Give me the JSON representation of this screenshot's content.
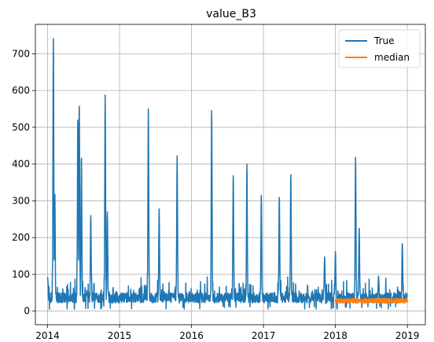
{
  "chart_data": {
    "type": "line",
    "title": "value_B3",
    "xlabel": "",
    "ylabel": "",
    "x_ticks": [
      "2014",
      "2015",
      "2016",
      "2017",
      "2018",
      "2019"
    ],
    "x_tick_values": [
      2014,
      2015,
      2016,
      2017,
      2018,
      2019
    ],
    "y_ticks": [
      "0",
      "100",
      "200",
      "300",
      "400",
      "500",
      "600",
      "700"
    ],
    "y_tick_values": [
      0,
      100,
      200,
      300,
      400,
      500,
      600,
      700
    ],
    "xlim": [
      2013.83,
      2019.25
    ],
    "ylim": [
      -37,
      780
    ],
    "grid": true,
    "legend": "top-right",
    "series": [
      {
        "name": "True",
        "color": "#1f77b4",
        "peaks": [
          {
            "x": 2014.0,
            "y": 93
          },
          {
            "x": 2014.08,
            "y": 745
          },
          {
            "x": 2014.1,
            "y": 325
          },
          {
            "x": 2014.42,
            "y": 525
          },
          {
            "x": 2014.44,
            "y": 568
          },
          {
            "x": 2014.47,
            "y": 425
          },
          {
            "x": 2014.6,
            "y": 260
          },
          {
            "x": 2014.8,
            "y": 588
          },
          {
            "x": 2014.83,
            "y": 270
          },
          {
            "x": 2015.4,
            "y": 550
          },
          {
            "x": 2015.55,
            "y": 280
          },
          {
            "x": 2015.8,
            "y": 422
          },
          {
            "x": 2016.28,
            "y": 548
          },
          {
            "x": 2016.58,
            "y": 372
          },
          {
            "x": 2016.77,
            "y": 400
          },
          {
            "x": 2016.97,
            "y": 315
          },
          {
            "x": 2017.22,
            "y": 312
          },
          {
            "x": 2017.38,
            "y": 375
          },
          {
            "x": 2017.85,
            "y": 148
          },
          {
            "x": 2018.0,
            "y": 162
          },
          {
            "x": 2018.28,
            "y": 420
          },
          {
            "x": 2018.33,
            "y": 230
          },
          {
            "x": 2018.6,
            "y": 95
          },
          {
            "x": 2018.93,
            "y": 187
          },
          {
            "x": 2019.0,
            "y": 48
          }
        ]
      },
      {
        "name": "median",
        "color": "#ff7f0e",
        "x_range": [
          2018.0,
          2019.0
        ],
        "level": 28
      }
    ]
  }
}
